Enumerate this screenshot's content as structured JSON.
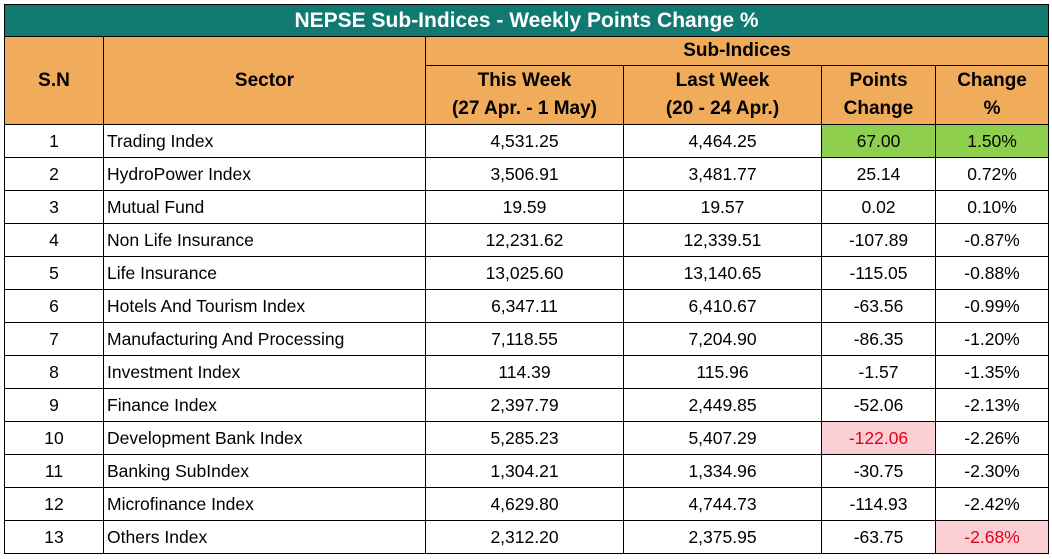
{
  "title": "NEPSE Sub-Indices - Weekly Points Change %",
  "headers": {
    "sn": "S.N",
    "sector": "Sector",
    "group": "Sub-Indices",
    "this_week_line1": "This Week",
    "this_week_line2": "(27 Apr. - 1 May)",
    "last_week_line1": "Last Week",
    "last_week_line2": "(20 - 24 Apr.)",
    "points_line1": "Points",
    "points_line2": "Change",
    "change_line1": "Change",
    "change_line2": "%"
  },
  "colors": {
    "title_bg": "#107a71",
    "header_bg": "#f0ac5a",
    "positive_highlight": "#8fcf4e",
    "negative_highlight": "#fbcfd3",
    "negative_text": "#e0001a"
  },
  "rows": [
    {
      "sn": "1",
      "sector": "Trading Index",
      "this_week": "4,531.25",
      "last_week": "4,464.25",
      "points": "67.00",
      "change": "1.50%"
    },
    {
      "sn": "2",
      "sector": "HydroPower Index",
      "this_week": "3,506.91",
      "last_week": "3,481.77",
      "points": "25.14",
      "change": "0.72%"
    },
    {
      "sn": "3",
      "sector": "Mutual Fund",
      "this_week": "19.59",
      "last_week": "19.57",
      "points": "0.02",
      "change": "0.10%"
    },
    {
      "sn": "4",
      "sector": "Non Life Insurance",
      "this_week": "12,231.62",
      "last_week": "12,339.51",
      "points": "-107.89",
      "change": "-0.87%"
    },
    {
      "sn": "5",
      "sector": "Life Insurance",
      "this_week": "13,025.60",
      "last_week": "13,140.65",
      "points": "-115.05",
      "change": "-0.88%"
    },
    {
      "sn": "6",
      "sector": "Hotels And Tourism Index",
      "this_week": "6,347.11",
      "last_week": "6,410.67",
      "points": "-63.56",
      "change": "-0.99%"
    },
    {
      "sn": "7",
      "sector": "Manufacturing And Processing",
      "this_week": "7,118.55",
      "last_week": "7,204.90",
      "points": "-86.35",
      "change": "-1.20%"
    },
    {
      "sn": "8",
      "sector": "Investment Index",
      "this_week": "114.39",
      "last_week": "115.96",
      "points": "-1.57",
      "change": "-1.35%"
    },
    {
      "sn": "9",
      "sector": "Finance Index",
      "this_week": "2,397.79",
      "last_week": "2,449.85",
      "points": "-52.06",
      "change": "-2.13%"
    },
    {
      "sn": "10",
      "sector": "Development Bank Index",
      "this_week": "5,285.23",
      "last_week": "5,407.29",
      "points": "-122.06",
      "change": "-2.26%"
    },
    {
      "sn": "11",
      "sector": "Banking SubIndex",
      "this_week": "1,304.21",
      "last_week": "1,334.96",
      "points": "-30.75",
      "change": "-2.30%"
    },
    {
      "sn": "12",
      "sector": "Microfinance Index",
      "this_week": "4,629.80",
      "last_week": "4,744.73",
      "points": "-114.93",
      "change": "-2.42%"
    },
    {
      "sn": "13",
      "sector": "Others Index",
      "this_week": "2,312.20",
      "last_week": "2,375.95",
      "points": "-63.75",
      "change": "-2.68%"
    }
  ]
}
